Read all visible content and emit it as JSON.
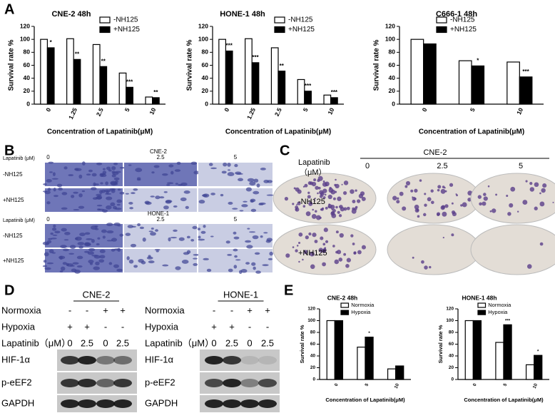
{
  "panels": {
    "a": "A",
    "b": "B",
    "c": "C",
    "d": "D",
    "e": "E"
  },
  "chart_data": [
    {
      "type": "bar",
      "title": "CNE-2 48h",
      "x_label": "Concentration of Lapatinib(μM)",
      "y_label": "Survival rate %",
      "categories": [
        "0",
        "1.25",
        "2.5",
        "5",
        "10"
      ],
      "ylim": [
        0,
        120
      ],
      "yticks": [
        0,
        20,
        40,
        60,
        80,
        100,
        120
      ],
      "series": [
        {
          "name": "-NH125",
          "color": "#ffffff",
          "values": [
            100,
            101,
            92,
            48,
            11
          ]
        },
        {
          "name": "+NH125",
          "color": "#000000",
          "values": [
            87,
            69,
            58,
            26,
            10
          ],
          "significance": [
            "*",
            "**",
            "**",
            "***",
            "**"
          ]
        }
      ]
    },
    {
      "type": "bar",
      "title": "HONE-1 48h",
      "x_label": "Concentration of Lapatinib(μM)",
      "y_label": "Survival rate %",
      "categories": [
        "0",
        "1.25",
        "2.5",
        "5",
        "10"
      ],
      "ylim": [
        0,
        120
      ],
      "yticks": [
        0,
        20,
        40,
        60,
        80,
        100,
        120
      ],
      "series": [
        {
          "name": "-NH125",
          "color": "#ffffff",
          "values": [
            100,
            101,
            87,
            38,
            14
          ]
        },
        {
          "name": "+NH125",
          "color": "#000000",
          "values": [
            82,
            64,
            51,
            20,
            10
          ],
          "significance": [
            "***",
            "***",
            "**",
            "***",
            "***"
          ]
        }
      ]
    },
    {
      "type": "bar",
      "title": "C666-1 48h",
      "x_label": "Concentration of Lapatinib(μM)",
      "y_label": "Survival rate %",
      "categories": [
        "0",
        "5",
        "10"
      ],
      "ylim": [
        0,
        120
      ],
      "yticks": [
        0,
        20,
        40,
        60,
        80,
        100,
        120
      ],
      "series": [
        {
          "name": "-NH125",
          "color": "#ffffff",
          "values": [
            100,
            67,
            65
          ]
        },
        {
          "name": "+NH125",
          "color": "#000000",
          "values": [
            93,
            59,
            42
          ],
          "significance": [
            null,
            "*",
            "***"
          ]
        }
      ]
    },
    {
      "type": "bar",
      "title": "CNE-2 48h",
      "x_label": "Concentration of Lapatinib(μM)",
      "y_label": "Survival rate %",
      "categories": [
        "0",
        "5",
        "10"
      ],
      "ylim": [
        0,
        120
      ],
      "yticks": [
        0,
        20,
        40,
        60,
        80,
        100,
        120
      ],
      "series": [
        {
          "name": "Normoxia",
          "color": "#ffffff",
          "values": [
            100,
            55,
            18
          ]
        },
        {
          "name": "Hypoxia",
          "color": "#000000",
          "values": [
            100,
            72,
            23
          ],
          "significance": [
            null,
            "*",
            null
          ]
        }
      ]
    },
    {
      "type": "bar",
      "title": "HONE-1 48h",
      "x_label": "Concentration of Lapatinib(μM)",
      "y_label": "Survival rate %",
      "categories": [
        "0",
        "5",
        "10"
      ],
      "ylim": [
        0,
        120
      ],
      "yticks": [
        0,
        20,
        40,
        60,
        80,
        100,
        120
      ],
      "series": [
        {
          "name": "Normoxia",
          "color": "#ffffff",
          "values": [
            100,
            63,
            25
          ]
        },
        {
          "name": "Hypoxia",
          "color": "#000000",
          "values": [
            100,
            93,
            41
          ],
          "significance": [
            null,
            "***",
            "*"
          ]
        }
      ]
    }
  ],
  "panel_b": {
    "groups": [
      {
        "axis_label": "Lapatinib (μM)",
        "cell_line": "CNE-2",
        "doses": [
          "0",
          "2.5",
          "5"
        ],
        "rows": [
          "-NH125",
          "+NH125"
        ]
      },
      {
        "axis_label": "Lapatinib (μM)",
        "cell_line": "HONE-1",
        "doses": [
          "0",
          "2.5",
          "5"
        ],
        "rows": [
          "-NH125",
          "+NH125"
        ]
      }
    ]
  },
  "panel_c": {
    "axis_label": "Lapatinib",
    "axis_unit": "（μM）",
    "cell_line": "CNE-2",
    "doses": [
      "0",
      "2.5",
      "5"
    ],
    "rows": [
      "-NH125",
      "+NH125"
    ]
  },
  "panel_d": {
    "blots": [
      {
        "cell_line": "CNE-2",
        "conditions": [
          {
            "label": "Normoxia",
            "lanes": [
              "-",
              "-",
              "+",
              "+"
            ]
          },
          {
            "label": "Hypoxia",
            "lanes": [
              "+",
              "+",
              "-",
              "-"
            ]
          },
          {
            "label": "Lapatinib（μM）",
            "lanes": [
              "0",
              "2.5",
              "0",
              "2.5"
            ]
          }
        ],
        "proteins": [
          "HIF-1α",
          "p-eEF2",
          "GAPDH"
        ]
      },
      {
        "cell_line": "HONE-1",
        "conditions": [
          {
            "label": "Normoxia",
            "lanes": [
              "-",
              "-",
              "+",
              "+"
            ]
          },
          {
            "label": "Hypoxia",
            "lanes": [
              "+",
              "+",
              "-",
              "-"
            ]
          },
          {
            "label": "Lapatinib（μM）",
            "lanes": [
              "0",
              "2.5",
              "0",
              "2.5"
            ]
          }
        ],
        "proteins": [
          "HIF-1α",
          "p-eEF2",
          "GAPDH"
        ]
      }
    ]
  }
}
